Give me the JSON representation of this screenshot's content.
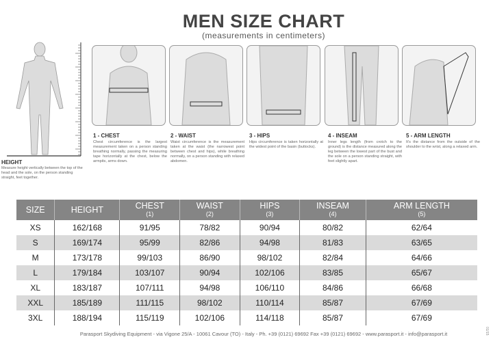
{
  "title": "MEN SIZE CHART",
  "subtitle": "(measurements in centimeters)",
  "height_info": {
    "heading": "HEIGHT",
    "text": "Measure height vertically between the top of the head and the sole, on the person standing straight, feet together."
  },
  "panels": [
    {
      "heading": "1 - CHEST",
      "text": "Chest circumference is the largest measurement taken on a person standing breathing normally, passing the measuring tape horizontally at the chest, below the armpits, arms down."
    },
    {
      "heading": "2 - WAIST",
      "text": "Waist circumference is the measurement taken at the waist (the narrowest point between chest and hips), while breathing normally, on a person standing with relaxed abdomen."
    },
    {
      "heading": "3 - HIPS",
      "text": "Hips circumference is taken horizontally at the widest point of the basin (buttocks)."
    },
    {
      "heading": "4 - INSEAM",
      "text": "Inner legs length (from crotch to the ground) is the distance measured along the leg between the lowest part of the bust and the sole on a person standing straight, with feet slightly apart."
    },
    {
      "heading": "5 - ARM LENGTH",
      "text": "It's the distance from the outside of the shoulder to the wrist, along a relaxed arm."
    }
  ],
  "table": {
    "headers": [
      {
        "label": "SIZE",
        "sub": ""
      },
      {
        "label": "HEIGHT",
        "sub": ""
      },
      {
        "label": "CHEST",
        "sub": "(1)"
      },
      {
        "label": "WAIST",
        "sub": "(2)"
      },
      {
        "label": "HIPS",
        "sub": "(3)"
      },
      {
        "label": "INSEAM",
        "sub": "(4)"
      },
      {
        "label": "ARM LENGTH",
        "sub": "(5)"
      }
    ],
    "rows": [
      [
        "XS",
        "162/168",
        "91/95",
        "78/82",
        "90/94",
        "80/82",
        "62/64"
      ],
      [
        "S",
        "169/174",
        "95/99",
        "82/86",
        "94/98",
        "81/83",
        "63/65"
      ],
      [
        "M",
        "173/178",
        "99/103",
        "86/90",
        "98/102",
        "82/84",
        "64/66"
      ],
      [
        "L",
        "179/184",
        "103/107",
        "90/94",
        "102/106",
        "83/85",
        "65/67"
      ],
      [
        "XL",
        "183/187",
        "107/111",
        "94/98",
        "106/110",
        "84/86",
        "66/68"
      ],
      [
        "XXL",
        "185/189",
        "111/115",
        "98/102",
        "110/114",
        "85/87",
        "67/69"
      ],
      [
        "3XL",
        "188/194",
        "115/119",
        "102/106",
        "114/118",
        "85/87",
        "67/69"
      ]
    ]
  },
  "footer": "Parasport Skydiving Equipment - via Vigone 25/A - 10061 Cavour (TO) - Italy - Ph. +39 (0121) 69692 Fax +39 (0121) 69692 - www.parasport.it - info@parasport.it",
  "code": "01/15"
}
